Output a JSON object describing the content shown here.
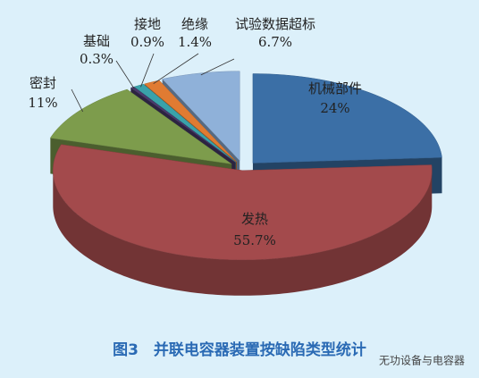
{
  "chart_data": {
    "type": "pie3d",
    "categories": [
      "机械部件",
      "发热",
      "密封",
      "基础",
      "接地",
      "绝缘",
      "试验数据超标"
    ],
    "values": [
      24,
      55.7,
      11,
      0.3,
      0.9,
      1.4,
      6.7
    ],
    "value_labels": [
      "24%",
      "55.7%",
      "11%",
      "0.3%",
      "0.9%",
      "1.4%",
      "6.7%"
    ],
    "colors": [
      "#3b6fa6",
      "#a34a4c",
      "#7d9c4c",
      "#4a3a6c",
      "#3aa2aa",
      "#e07b32",
      "#8fb1d9"
    ],
    "caption": "图3　并联电容器装置按缺陷类型统计",
    "watermark": "无功设备与电容器"
  }
}
